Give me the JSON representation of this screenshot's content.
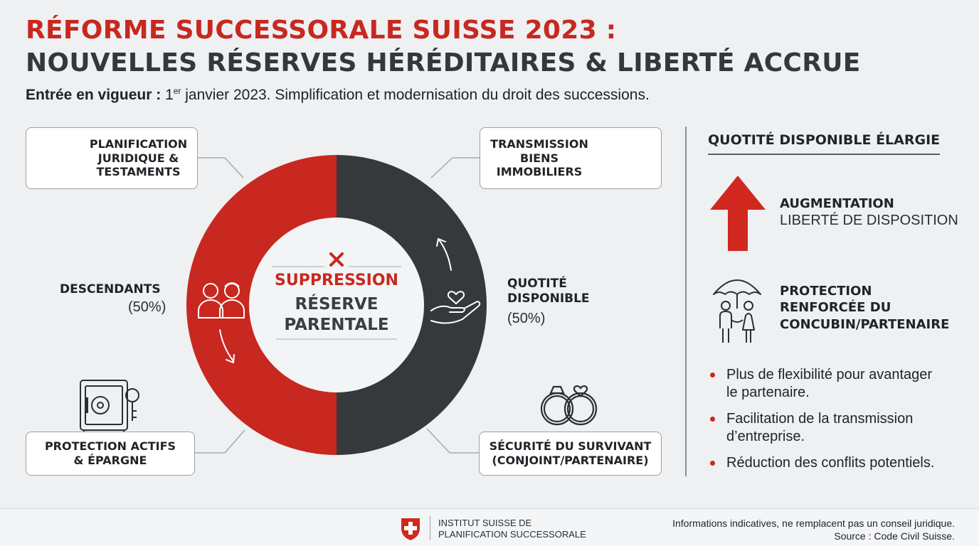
{
  "header": {
    "title_line1": "RÉFORME SUCCESSORALE SUISSE 2023 :",
    "title_line2": "NOUVELLES RÉSERVES HÉRÉDITAIRES & LIBERTÉ ACCRUE",
    "subtitle_bold": "Entrée en vigueur :",
    "subtitle_num": "1",
    "subtitle_sup": "er",
    "subtitle_rest": "janvier 2023. Simplification et modernisation du droit des successions."
  },
  "diagram": {
    "center_red": "SUPPRESSION",
    "center_line2": "RÉSERVE",
    "center_line3": "PARENTALE",
    "segments": [
      {
        "label": "DESCENDANTS",
        "pct_text": "(50%)",
        "value": 50,
        "color": "#c8281f"
      },
      {
        "label_line1": "QUOTITÉ",
        "label_line2": "DISPONIBLE",
        "pct_text": "(50%)",
        "value": 50,
        "color": "#36393c"
      }
    ],
    "boxes": {
      "planification": [
        "PLANIFICATION",
        "JURIDIQUE &",
        "TESTAMENTS"
      ],
      "transmission": [
        "TRANSMISSION",
        "BIENS",
        "IMMOBILIERS"
      ],
      "protection": [
        "PROTECTION ACTIFS",
        "& ÉPARGNE"
      ],
      "securite": [
        "SÉCURITÉ DU SURVIVANT",
        "(CONJOINT/PARTENAIRE)"
      ]
    }
  },
  "panel": {
    "title": "QUOTITÉ DISPONIBLE ÉLARGIE",
    "increase_title": "AUGMENTATION",
    "increase_sub": "LIBERTÉ DE DISPOSITION",
    "protection_lines": [
      "PROTECTION",
      "RENFORCÉE DU",
      "CONCUBIN/PARTENAIRE"
    ],
    "bullets": [
      [
        "Plus de flexibilité pour avantager",
        "le partenaire."
      ],
      [
        "Facilitation de la transmission",
        "d’entreprise."
      ],
      [
        "Réduction des conflits potentiels."
      ]
    ]
  },
  "footer": {
    "institute_line1": "INSTITUT SUISSE DE",
    "institute_line2": "PLANIFICATION SUCCESSORALE",
    "disclaimer_line1": "Informations indicatives, ne remplacent pas un conseil juridique.",
    "disclaimer_line2": "Source : Code Civil Suisse."
  },
  "colors": {
    "accent_red": "#c8281f",
    "dark": "#36393c",
    "background": "#eef0f2"
  },
  "icons": [
    "document-scroll-icon",
    "house-tree-icon",
    "safe-key-icon",
    "wedding-rings-icon",
    "children-icon",
    "heart-hand-icon",
    "up-arrow-icon",
    "umbrella-couple-icon",
    "swiss-cross-icon"
  ]
}
